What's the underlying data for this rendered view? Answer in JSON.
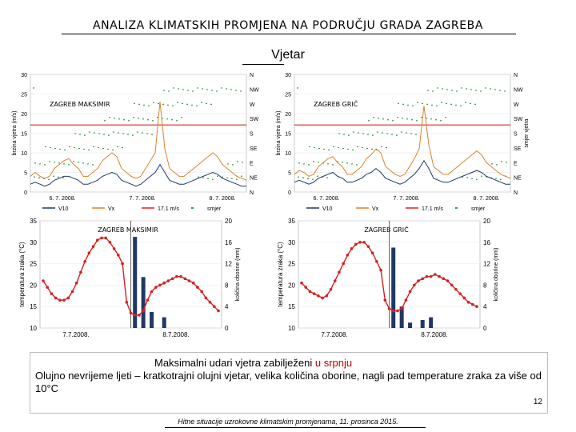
{
  "slide": {
    "title": "ANALIZA KLIMATSKIH PROMJENA NA PODRUČJU GRADA ZAGREBA",
    "subtitle": "Vjetar",
    "caption_line1_prefix": "Maksimalni udari vjetra zabilježeni ",
    "caption_line1_highlight": "u srpnju",
    "caption_line2": "Olujno nevrijeme ljeti – kratkotrajni olujni vjetar, velika količina oborine, nagli pad temperature zraka za više od 10°C",
    "page_number": "12",
    "footer": "Hitne situacije uzrokovne klimatskim promjenama, 11. prosinca 2015."
  },
  "colors": {
    "v10": "#1f3864",
    "vx": "#d9822b",
    "threshold": "#e02020",
    "direction": "#3aa04a",
    "temperature": "#d62020",
    "precip": "#1f3864"
  },
  "chart_data": [
    {
      "type": "line",
      "station": "ZAGREB MAKSIMIR",
      "ylabel": "brzina vjetra (m/s)",
      "y_ticks": [
        "30",
        "25",
        "20",
        "15",
        "10",
        "5",
        "0"
      ],
      "ylim": [
        0,
        30
      ],
      "right_ticks": [
        "N",
        "NW",
        "W",
        "SW",
        "S",
        "SE",
        "E",
        "NE",
        "N"
      ],
      "x_ticks": [
        "6. 7. 2008.",
        "7. 7. 2008.",
        "8. 7. 2008."
      ],
      "threshold": 17.1,
      "gust_peak": 23,
      "legend": [
        "V10",
        "Vx",
        "17.1 m/s",
        "smjer"
      ],
      "series": [
        {
          "name": "V10",
          "values": [
            2,
            2.5,
            2,
            1.5,
            2,
            3,
            3.5,
            4,
            4,
            3.5,
            3,
            2,
            2,
            2.5,
            3,
            4,
            4.5,
            5,
            4.5,
            3,
            2.5,
            2,
            1.5,
            2,
            3,
            4,
            5,
            7,
            5,
            3,
            2.5,
            2,
            2,
            2.5,
            3,
            3.5,
            4,
            4.5,
            5,
            4.5,
            3.5,
            3,
            2.5,
            2,
            1.5,
            1.5
          ]
        },
        {
          "name": "Vx",
          "values": [
            4,
            5,
            4,
            3.5,
            4,
            6,
            7,
            8,
            8.5,
            7,
            6,
            4,
            4,
            5,
            6,
            8,
            9,
            10,
            9,
            6,
            5,
            4,
            3.5,
            4,
            6,
            8,
            10,
            23,
            11,
            6,
            5,
            4,
            4,
            5,
            6,
            7,
            8,
            9,
            10,
            9,
            7,
            6,
            5,
            4,
            3.5,
            3
          ]
        }
      ]
    },
    {
      "type": "line",
      "station": "ZAGREB GRIČ",
      "ylabel": "brzina vjetra (m/s)",
      "y_ticks": [
        "30",
        "25",
        "20",
        "15",
        "10",
        "5",
        "0"
      ],
      "ylim": [
        0,
        30
      ],
      "right_ticks": [
        "N",
        "NW",
        "W",
        "SW",
        "S",
        "SE",
        "E",
        "NE",
        "N"
      ],
      "right_label": "smjer vjetra",
      "x_ticks": [
        "6. 7. 2008.",
        "7. 7. 2008.",
        "8. 7. 2008."
      ],
      "threshold": 17.1,
      "gust_peak": 22,
      "legend": [
        "V10",
        "Vx",
        "17.1 m/s",
        "smjer"
      ],
      "series": [
        {
          "name": "V10",
          "values": [
            2.5,
            3,
            2.5,
            2,
            2.5,
            3.5,
            4,
            4.5,
            5,
            4,
            3.5,
            2.5,
            2.5,
            3,
            3.5,
            4.5,
            5,
            6,
            5,
            3.5,
            3,
            2.5,
            2,
            2.5,
            3.5,
            4.5,
            6,
            8,
            6,
            3.5,
            3,
            2.5,
            2.5,
            3,
            3.5,
            4,
            4.5,
            5,
            5.5,
            5,
            4,
            3.5,
            3,
            2.5,
            2,
            2
          ]
        },
        {
          "name": "Vx",
          "values": [
            4.5,
            5.5,
            5,
            4,
            4.5,
            6.5,
            7.5,
            8.5,
            9,
            7.5,
            6.5,
            4.5,
            4.5,
            5.5,
            6.5,
            8.5,
            9.5,
            11,
            10,
            6.5,
            5.5,
            4.5,
            4,
            4.5,
            6.5,
            8.5,
            11,
            22,
            12,
            6.5,
            5.5,
            4.5,
            4.5,
            5.5,
            6.5,
            7.5,
            8.5,
            9.5,
            10.5,
            9.5,
            7.5,
            6.5,
            5.5,
            4.5,
            4,
            3.5
          ]
        }
      ]
    },
    {
      "type": "line",
      "station": "ZAGREB MAKSIMIR",
      "ylabel": "temperatura zraka (°C)",
      "y2label": "količina oborine (mm)",
      "left_ticks": [
        "35",
        "30",
        "25",
        "20",
        "15",
        "10"
      ],
      "right_ticks": [
        "20",
        "16",
        "12",
        "8",
        "4",
        "0"
      ],
      "ylim": [
        10,
        35
      ],
      "y2lim": [
        0,
        20
      ],
      "x_ticks": [
        "7.7.2008.",
        "8.7.2008."
      ],
      "series": [
        {
          "name": "temperatura",
          "values": [
            21,
            19.5,
            18,
            17,
            16.5,
            16.5,
            17,
            18.5,
            20.5,
            23,
            25.5,
            27.5,
            29,
            30.5,
            31,
            31,
            30,
            28.5,
            27,
            25,
            16,
            13.5,
            13,
            13,
            14,
            16.5,
            18.5,
            19.5,
            20,
            20.5,
            21,
            21.5,
            22,
            22,
            21.5,
            21,
            20.5,
            19.5,
            18.5,
            17,
            16,
            15,
            14
          ]
        },
        {
          "name": "oborina",
          "values": [
            0,
            0,
            0,
            0,
            0,
            0,
            0,
            0,
            0,
            0,
            0,
            0,
            0,
            0,
            0,
            0,
            0,
            0,
            0,
            0,
            0,
            0,
            17,
            0,
            9.5,
            0,
            3,
            0,
            0,
            2,
            0,
            0,
            0,
            0,
            0,
            0,
            0,
            0,
            0,
            0,
            0,
            0,
            0
          ]
        }
      ]
    },
    {
      "type": "line",
      "station": "ZAGREB GRIČ",
      "ylabel": "temperatura zraka (°C)",
      "y2label": "količina oborine (mm)",
      "left_ticks": [
        "35",
        "30",
        "25",
        "20",
        "15",
        "10"
      ],
      "right_ticks": [
        "20",
        "16",
        "12",
        "8",
        "4",
        "0"
      ],
      "ylim": [
        10,
        35
      ],
      "y2lim": [
        0,
        20
      ],
      "x_ticks": [
        "7.7.2008.",
        "8.7.2008."
      ],
      "series": [
        {
          "name": "temperatura",
          "values": [
            20.5,
            19.5,
            18.5,
            18,
            17.5,
            17,
            17.5,
            19,
            21,
            23,
            25,
            27,
            28.5,
            29.5,
            30,
            30,
            29,
            27.5,
            25.5,
            23.5,
            16.5,
            14.5,
            14,
            14,
            14.5,
            16.5,
            18.5,
            20,
            21,
            21.5,
            22,
            22,
            22.5,
            22,
            21.5,
            21,
            20,
            19,
            18,
            17,
            16,
            15.5,
            15
          ]
        },
        {
          "name": "oborina",
          "values": [
            0,
            0,
            0,
            0,
            0,
            0,
            0,
            0,
            0,
            0,
            0,
            0,
            0,
            0,
            0,
            0,
            0,
            0,
            0,
            0,
            0,
            0,
            15,
            0,
            4,
            0,
            1,
            0,
            0,
            1.5,
            0,
            2,
            0,
            0,
            0,
            0,
            0,
            0,
            0,
            0,
            0,
            0,
            0
          ]
        }
      ]
    }
  ]
}
